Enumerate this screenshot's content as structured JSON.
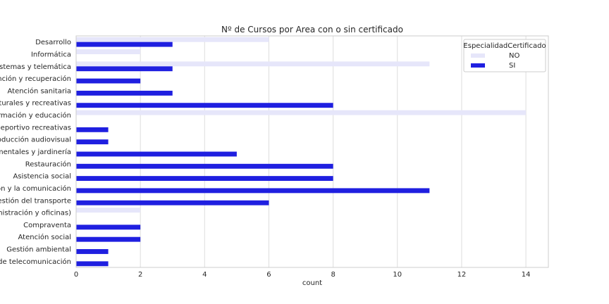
{
  "chart_data": {
    "type": "bar",
    "orientation": "horizontal",
    "title": "Nº de Cursos por Area con o sin certificado",
    "xlabel": "count",
    "ylabel": "",
    "xlim": [
      0,
      14.7
    ],
    "xticks": [
      0,
      2,
      4,
      6,
      8,
      10,
      12,
      14
    ],
    "grid": "vertical",
    "legend_position": "top-right",
    "legend_title": "EspecialidadCertificado",
    "categories": [
      "Desarrollo",
      "Informática",
      "Sistemas y telemática",
      "vención y recuperación",
      "Atención sanitaria",
      "culturales y recreativas",
      "Formación y educación",
      "o-deportivo recreativas",
      "Producción audiovisual",
      "namentales y jardinería",
      "Restauración",
      "Asistencia social",
      "ción y la comunicación",
      "y gestión del transporte",
      "ministración y oficinas)",
      "Compraventa",
      "Atención social",
      "Gestión ambiental",
      "s de telecomunicación"
    ],
    "series": [
      {
        "name": "NO",
        "color": "#e6e6fa",
        "values": [
          6,
          2,
          11,
          0,
          0,
          0,
          14,
          0,
          0,
          0,
          0,
          0,
          0,
          0,
          2,
          0,
          0,
          0,
          0
        ]
      },
      {
        "name": "SI",
        "color": "#1f1fe0",
        "values": [
          3,
          0,
          3,
          2,
          3,
          8,
          0,
          1,
          1,
          5,
          8,
          8,
          11,
          6,
          0,
          2,
          2,
          1,
          1
        ]
      }
    ]
  }
}
